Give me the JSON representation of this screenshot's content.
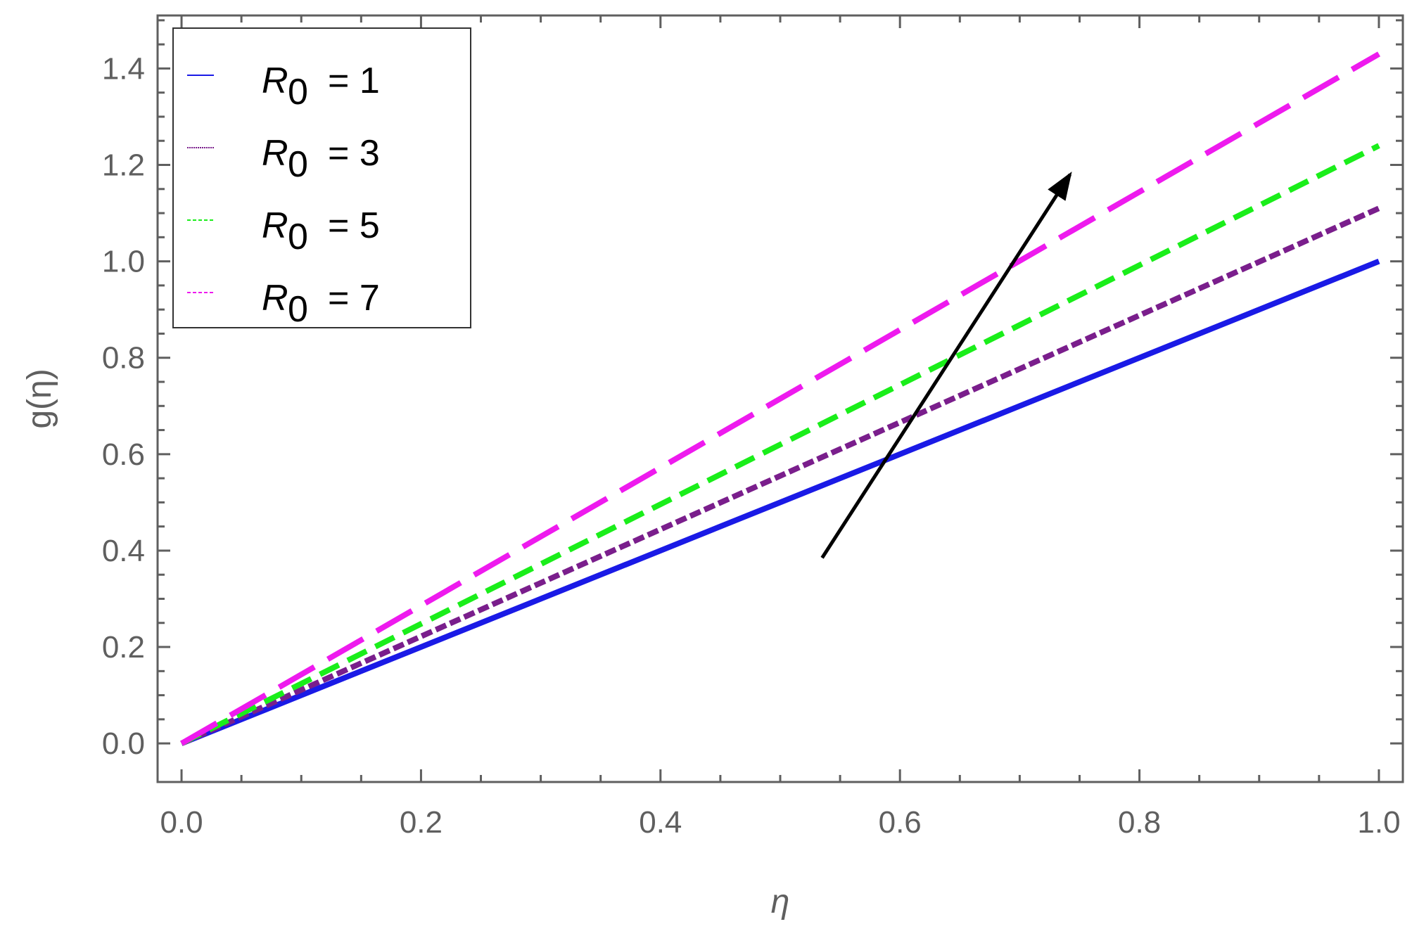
{
  "chart_data": {
    "type": "line",
    "xlabel": "η",
    "ylabel": "g(η)",
    "xlim": [
      -0.02,
      1.02
    ],
    "ylim": [
      -0.08,
      1.51
    ],
    "xticks": [
      0.0,
      0.2,
      0.4,
      0.6,
      0.8,
      1.0
    ],
    "xtick_labels": [
      "0.0",
      "0.2",
      "0.4",
      "0.6",
      "0.8",
      "1.0"
    ],
    "yticks": [
      0.0,
      0.2,
      0.4,
      0.6,
      0.8,
      1.0,
      1.2,
      1.4
    ],
    "ytick_labels": [
      "0.0",
      "0.2",
      "0.4",
      "0.6",
      "0.8",
      "1.0",
      "1.2",
      "1.4"
    ],
    "grid": false,
    "legend_position": "top-left",
    "legend_param": "R",
    "legend_subscript": "0",
    "series": [
      {
        "name": "R0 = 1",
        "value_label": "= 1",
        "color": "#1a1ae6",
        "style": "solid",
        "x": [
          0,
          1
        ],
        "y": [
          0,
          1.0
        ]
      },
      {
        "name": "R0 = 3",
        "value_label": "= 3",
        "color": "#7a1e8c",
        "style": "dotted",
        "x": [
          0,
          1
        ],
        "y": [
          0,
          1.11
        ]
      },
      {
        "name": "R0 = 5",
        "value_label": "= 5",
        "color": "#1aee1a",
        "style": "dashed",
        "x": [
          0,
          1
        ],
        "y": [
          0,
          1.24
        ]
      },
      {
        "name": "R0 = 7",
        "value_label": "= 7",
        "color": "#ee1aee",
        "style": "longdash",
        "x": [
          0,
          1
        ],
        "y": [
          0,
          1.43
        ]
      }
    ],
    "annotations": [
      {
        "type": "arrow",
        "color": "#000000",
        "from": [
          0.535,
          0.385
        ],
        "to": [
          0.742,
          1.18
        ]
      }
    ]
  }
}
